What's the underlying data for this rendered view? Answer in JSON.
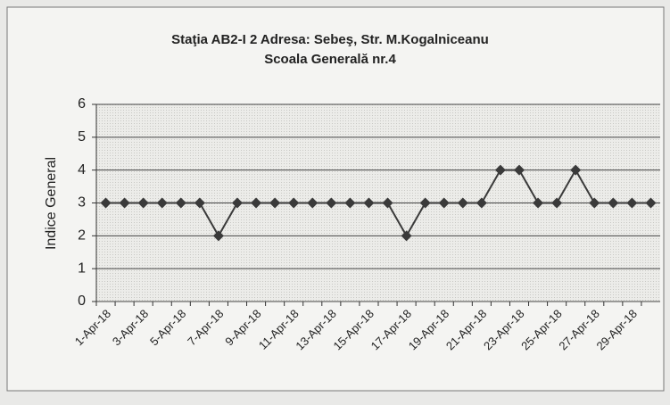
{
  "chart_data": {
    "type": "line",
    "title": "Staţia AB2-I 2  Adresa: Sebeş, Str. M.Kogalniceanu",
    "subtitle": "Scoala Generală nr.4",
    "y_label": "Indice General",
    "categories": [
      "1-Apr-18",
      null,
      "3-Apr-18",
      null,
      "5-Apr-18",
      null,
      "7-Apr-18",
      null,
      "9-Apr-18",
      null,
      "11-Apr-18",
      null,
      "13-Apr-18",
      null,
      "15-Apr-18",
      null,
      "17-Apr-18",
      null,
      "19-Apr-18",
      null,
      "21-Apr-18",
      null,
      "23-Apr-18",
      null,
      "25-Apr-18",
      null,
      "27-Apr-18",
      null,
      "29-Apr-18",
      null
    ],
    "series": [
      {
        "name": "Indice General",
        "color": "#3a3a3a",
        "values": [
          3,
          3,
          3,
          3,
          3,
          3,
          2,
          3,
          3,
          3,
          3,
          3,
          3,
          3,
          3,
          3,
          2,
          3,
          3,
          3,
          3,
          4,
          4,
          3,
          3,
          4,
          3,
          3,
          3,
          3
        ]
      }
    ],
    "ylim": [
      0,
      6
    ],
    "yticks": [
      0,
      1,
      2,
      3,
      4,
      5,
      6
    ],
    "grid": true
  }
}
